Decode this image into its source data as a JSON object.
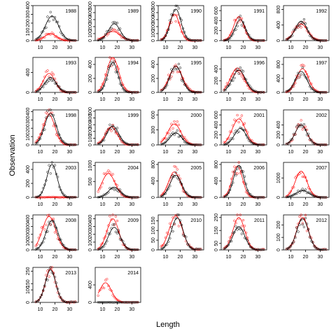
{
  "chart_data": {
    "type": "scatter",
    "xlabel": "Length",
    "ylabel": "Observation",
    "grid": false,
    "xlim": [
      5,
      36
    ],
    "xticks": [
      10,
      20,
      30
    ],
    "series_styles": {
      "obs_a": {
        "color": "#000000",
        "marker": "open-circle",
        "line": "#000000"
      },
      "obs_b": {
        "color": "#ff0000",
        "marker": "open-circle",
        "line": "#ff0000"
      }
    },
    "panels": [
      {
        "year": "1988",
        "ylim": [
          0,
          400
        ],
        "yticks": [
          0,
          100,
          200,
          300,
          400
        ],
        "a": {
          "peak": 18,
          "h": 280,
          "w": 4.5
        },
        "b": {
          "peak": 17,
          "h": 80,
          "w": 4
        }
      },
      {
        "year": "1989",
        "ylim": [
          0,
          500
        ],
        "yticks": [
          0,
          100,
          200,
          300,
          400,
          500
        ],
        "a": {
          "peak": 18,
          "h": 240,
          "w": 4
        },
        "b": {
          "peak": 17,
          "h": 130,
          "w": 5
        }
      },
      {
        "year": "1990",
        "ylim": [
          0,
          500
        ],
        "yticks": [
          0,
          100,
          200,
          300,
          400,
          500
        ],
        "a": {
          "peak": 17,
          "h": 450,
          "w": 3.5
        },
        "b": {
          "peak": 16,
          "h": 380,
          "w": 3.5
        }
      },
      {
        "year": "1991",
        "ylim": [
          0,
          700
        ],
        "yticks": [
          0,
          200,
          400,
          600
        ],
        "a": {
          "peak": 18,
          "h": 420,
          "w": 3.5
        },
        "b": {
          "peak": 17,
          "h": 480,
          "w": 3.5
        }
      },
      {
        "year": "1992",
        "ylim": [
          0,
          900
        ],
        "yticks": [
          0,
          400,
          800
        ],
        "a": {
          "peak": 17,
          "h": 500,
          "w": 4
        },
        "b": {
          "peak": 17,
          "h": 420,
          "w": 4.5
        }
      },
      {
        "year": "1993",
        "ylim": [
          0,
          700
        ],
        "yticks": [
          0,
          400
        ],
        "a": {
          "peak": 17,
          "h": 300,
          "w": 4
        },
        "b": {
          "peak": 16,
          "h": 380,
          "w": 4
        }
      },
      {
        "year": "1994",
        "ylim": [
          0,
          500
        ],
        "yticks": [
          0,
          200,
          400
        ],
        "a": {
          "peak": 17,
          "h": 430,
          "w": 3.5
        },
        "b": {
          "peak": 17,
          "h": 500,
          "w": 4
        }
      },
      {
        "year": "1995",
        "ylim": [
          0,
          500
        ],
        "yticks": [
          0,
          200,
          400
        ],
        "a": {
          "peak": 17,
          "h": 380,
          "w": 4
        },
        "b": {
          "peak": 17,
          "h": 370,
          "w": 4.5
        }
      },
      {
        "year": "1996",
        "ylim": [
          0,
          600
        ],
        "yticks": [
          0,
          200,
          400
        ],
        "a": {
          "peak": 17,
          "h": 380,
          "w": 4.5
        },
        "b": {
          "peak": 16,
          "h": 420,
          "w": 4.5
        }
      },
      {
        "year": "1997",
        "ylim": [
          0,
          1000
        ],
        "yticks": [
          0,
          400,
          800
        ],
        "a": {
          "peak": 17,
          "h": 600,
          "w": 4
        },
        "b": {
          "peak": 18,
          "h": 680,
          "w": 4
        }
      },
      {
        "year": "1998",
        "ylim": [
          0,
          420
        ],
        "yticks": [
          0,
          100,
          200,
          300,
          400
        ],
        "a": {
          "peak": 17,
          "h": 380,
          "w": 4
        },
        "b": {
          "peak": 16,
          "h": 360,
          "w": 4
        }
      },
      {
        "year": "1999",
        "ylim": [
          0,
          520
        ],
        "yticks": [
          0,
          100,
          200,
          300,
          400,
          500
        ],
        "a": {
          "peak": 17,
          "h": 280,
          "w": 4
        },
        "b": {
          "peak": 16,
          "h": 270,
          "w": 4
        }
      },
      {
        "year": "2000",
        "ylim": [
          0,
          700
        ],
        "yticks": [
          0,
          300,
          600
        ],
        "a": {
          "peak": 17,
          "h": 240,
          "w": 4
        },
        "b": {
          "peak": 16,
          "h": 420,
          "w": 4.5
        }
      },
      {
        "year": "2001",
        "ylim": [
          0,
          700
        ],
        "yticks": [
          0,
          200,
          400,
          600
        ],
        "a": {
          "peak": 18,
          "h": 330,
          "w": 4
        },
        "b": {
          "peak": 17,
          "h": 520,
          "w": 4.5
        }
      },
      {
        "year": "2002",
        "ylim": [
          0,
          700
        ],
        "yticks": [
          0,
          200,
          400
        ],
        "a": {
          "peak": 17,
          "h": 400,
          "w": 4
        },
        "b": {
          "peak": 17,
          "h": 400,
          "w": 4
        }
      },
      {
        "year": "2003",
        "ylim": [
          0,
          500
        ],
        "yticks": [
          0,
          200,
          400
        ],
        "a": {
          "peak": 18,
          "h": 470,
          "w": 3.5
        },
        "b": {
          "peak": 17,
          "h": 0,
          "w": 4
        }
      },
      {
        "year": "2004",
        "ylim": [
          0,
          1100
        ],
        "yticks": [
          0,
          500,
          1000
        ],
        "a": {
          "peak": 18,
          "h": 320,
          "w": 4
        },
        "b": {
          "peak": 14,
          "h": 750,
          "w": 4.5
        }
      },
      {
        "year": "2005",
        "ylim": [
          0,
          850
        ],
        "yticks": [
          0,
          400,
          800
        ],
        "a": {
          "peak": 17,
          "h": 540,
          "w": 4
        },
        "b": {
          "peak": 16,
          "h": 620,
          "w": 4
        }
      },
      {
        "year": "2006",
        "ylim": [
          0,
          850
        ],
        "yticks": [
          0,
          400,
          800
        ],
        "a": {
          "peak": 17,
          "h": 780,
          "w": 3.5
        },
        "b": {
          "peak": 16,
          "h": 760,
          "w": 3.5
        }
      },
      {
        "year": "2007",
        "ylim": [
          0,
          1800
        ],
        "yticks": [
          0,
          1000
        ],
        "a": {
          "peak": 18,
          "h": 350,
          "w": 4.5
        },
        "b": {
          "peak": 17,
          "h": 1350,
          "w": 4
        }
      },
      {
        "year": "2008",
        "ylim": [
          0,
          450
        ],
        "yticks": [
          0,
          100,
          200,
          300,
          400
        ],
        "a": {
          "peak": 18,
          "h": 380,
          "w": 4
        },
        "b": {
          "peak": 16,
          "h": 430,
          "w": 4.5
        }
      },
      {
        "year": "2009",
        "ylim": [
          0,
          450
        ],
        "yticks": [
          0,
          100,
          200,
          300,
          400
        ],
        "a": {
          "peak": 18,
          "h": 290,
          "w": 4
        },
        "b": {
          "peak": 17,
          "h": 400,
          "w": 4
        }
      },
      {
        "year": "2010",
        "ylim": [
          0,
          180
        ],
        "yticks": [
          0,
          50,
          100,
          150
        ],
        "a": {
          "peak": 18,
          "h": 165,
          "w": 4
        },
        "b": {
          "peak": 17,
          "h": 175,
          "w": 4.5
        }
      },
      {
        "year": "2011",
        "ylim": [
          0,
          270
        ],
        "yticks": [
          0,
          50,
          150,
          250
        ],
        "a": {
          "peak": 17,
          "h": 180,
          "w": 4
        },
        "b": {
          "peak": 17,
          "h": 250,
          "w": 4
        }
      },
      {
        "year": "2012",
        "ylim": [
          0,
          280
        ],
        "yticks": [
          0,
          100,
          200
        ],
        "a": {
          "peak": 18,
          "h": 250,
          "w": 4
        },
        "b": {
          "peak": 18,
          "h": 260,
          "w": 4
        }
      },
      {
        "year": "2013",
        "ylim": [
          0,
          280
        ],
        "yticks": [
          0,
          100,
          150,
          250
        ],
        "a": {
          "peak": 17,
          "h": 260,
          "w": 3.5
        },
        "b": {
          "peak": 17,
          "h": 270,
          "w": 3.5
        }
      },
      {
        "year": "2014",
        "ylim": [
          0,
          800
        ],
        "yticks": [
          0,
          400
        ],
        "a": {
          "peak": 17,
          "h": 0,
          "w": 4
        },
        "b": {
          "peak": 12,
          "h": 450,
          "w": 4
        }
      }
    ]
  }
}
